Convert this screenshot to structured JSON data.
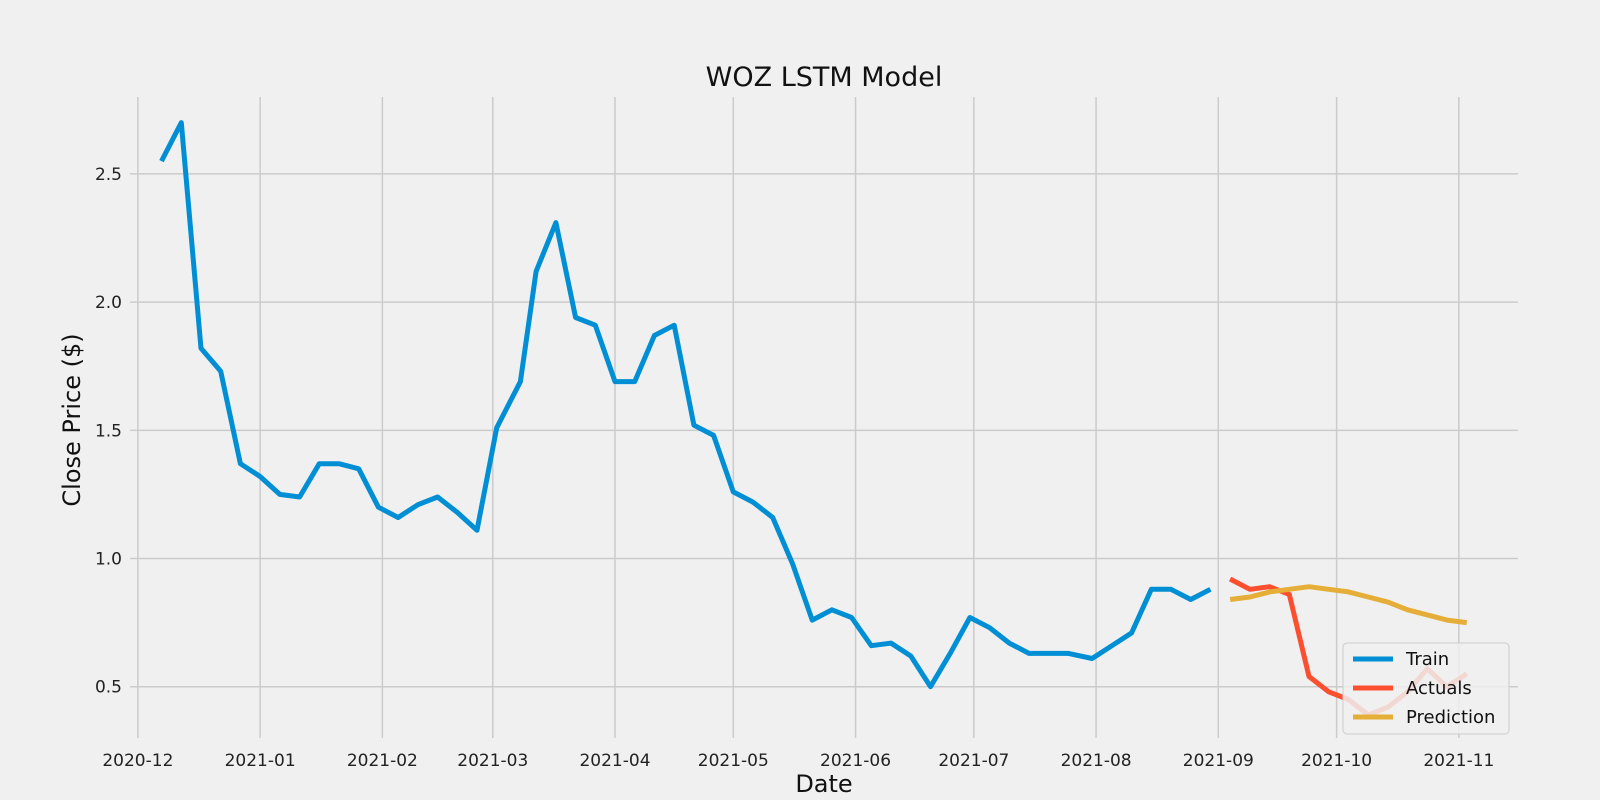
{
  "chart_data": {
    "type": "line",
    "title": "WOZ LSTM Model",
    "xlabel": "Date",
    "ylabel": "Close Price ($)",
    "x_axis_type": "date",
    "xlim": [
      "2020-11-29",
      "2021-11-16"
    ],
    "ylim": [
      0.3,
      2.8
    ],
    "grid": true,
    "legend_position": "bottom-right",
    "x_ticks": [
      "2020-12",
      "2021-01",
      "2021-02",
      "2021-03",
      "2021-04",
      "2021-05",
      "2021-06",
      "2021-07",
      "2021-08",
      "2021-09",
      "2021-10",
      "2021-11"
    ],
    "y_ticks": [
      0.5,
      1.0,
      1.5,
      2.0,
      2.5
    ],
    "series": [
      {
        "name": "Train",
        "color": "#008fd5",
        "points": [
          [
            "2020-12-07",
            2.55
          ],
          [
            "2020-12-12",
            2.7
          ],
          [
            "2020-12-17",
            1.82
          ],
          [
            "2020-12-22",
            1.73
          ],
          [
            "2020-12-27",
            1.37
          ],
          [
            "2021-01-01",
            1.32
          ],
          [
            "2021-01-06",
            1.25
          ],
          [
            "2021-01-11",
            1.24
          ],
          [
            "2021-01-16",
            1.37
          ],
          [
            "2021-01-21",
            1.37
          ],
          [
            "2021-01-26",
            1.35
          ],
          [
            "2021-01-31",
            1.2
          ],
          [
            "2021-02-05",
            1.16
          ],
          [
            "2021-02-10",
            1.21
          ],
          [
            "2021-02-15",
            1.24
          ],
          [
            "2021-02-20",
            1.18
          ],
          [
            "2021-02-25",
            1.11
          ],
          [
            "2021-03-02",
            1.51
          ],
          [
            "2021-03-08",
            1.69
          ],
          [
            "2021-03-12",
            2.12
          ],
          [
            "2021-03-17",
            2.31
          ],
          [
            "2021-03-22",
            1.94
          ],
          [
            "2021-03-27",
            1.91
          ],
          [
            "2021-04-01",
            1.69
          ],
          [
            "2021-04-06",
            1.69
          ],
          [
            "2021-04-11",
            1.87
          ],
          [
            "2021-04-16",
            1.91
          ],
          [
            "2021-04-21",
            1.52
          ],
          [
            "2021-04-26",
            1.48
          ],
          [
            "2021-05-01",
            1.26
          ],
          [
            "2021-05-06",
            1.22
          ],
          [
            "2021-05-11",
            1.16
          ],
          [
            "2021-05-16",
            0.98
          ],
          [
            "2021-05-21",
            0.76
          ],
          [
            "2021-05-26",
            0.8
          ],
          [
            "2021-05-31",
            0.77
          ],
          [
            "2021-06-05",
            0.66
          ],
          [
            "2021-06-10",
            0.67
          ],
          [
            "2021-06-15",
            0.62
          ],
          [
            "2021-06-20",
            0.5
          ],
          [
            "2021-06-25",
            0.63
          ],
          [
            "2021-06-30",
            0.77
          ],
          [
            "2021-07-05",
            0.73
          ],
          [
            "2021-07-10",
            0.67
          ],
          [
            "2021-07-15",
            0.63
          ],
          [
            "2021-07-20",
            0.63
          ],
          [
            "2021-07-25",
            0.63
          ],
          [
            "2021-07-31",
            0.61
          ],
          [
            "2021-08-05",
            0.66
          ],
          [
            "2021-08-10",
            0.71
          ],
          [
            "2021-08-15",
            0.88
          ],
          [
            "2021-08-20",
            0.88
          ],
          [
            "2021-08-25",
            0.84
          ],
          [
            "2021-08-30",
            0.88
          ]
        ]
      },
      {
        "name": "Actuals",
        "color": "#fc4f30",
        "points": [
          [
            "2021-09-04",
            0.92
          ],
          [
            "2021-09-09",
            0.88
          ],
          [
            "2021-09-14",
            0.89
          ],
          [
            "2021-09-19",
            0.86
          ],
          [
            "2021-09-24",
            0.54
          ],
          [
            "2021-09-29",
            0.48
          ],
          [
            "2021-10-04",
            0.45
          ],
          [
            "2021-10-09",
            0.39
          ],
          [
            "2021-10-14",
            0.42
          ],
          [
            "2021-10-19",
            0.48
          ],
          [
            "2021-10-24",
            0.57
          ],
          [
            "2021-10-29",
            0.5
          ],
          [
            "2021-11-03",
            0.55
          ]
        ]
      },
      {
        "name": "Prediction",
        "color": "#e5ae38",
        "points": [
          [
            "2021-09-04",
            0.84
          ],
          [
            "2021-09-09",
            0.85
          ],
          [
            "2021-09-14",
            0.87
          ],
          [
            "2021-09-19",
            0.88
          ],
          [
            "2021-09-24",
            0.89
          ],
          [
            "2021-09-29",
            0.88
          ],
          [
            "2021-10-04",
            0.87
          ],
          [
            "2021-10-09",
            0.85
          ],
          [
            "2021-10-14",
            0.83
          ],
          [
            "2021-10-19",
            0.8
          ],
          [
            "2021-10-24",
            0.78
          ],
          [
            "2021-10-29",
            0.76
          ],
          [
            "2021-11-03",
            0.75
          ]
        ]
      }
    ]
  }
}
